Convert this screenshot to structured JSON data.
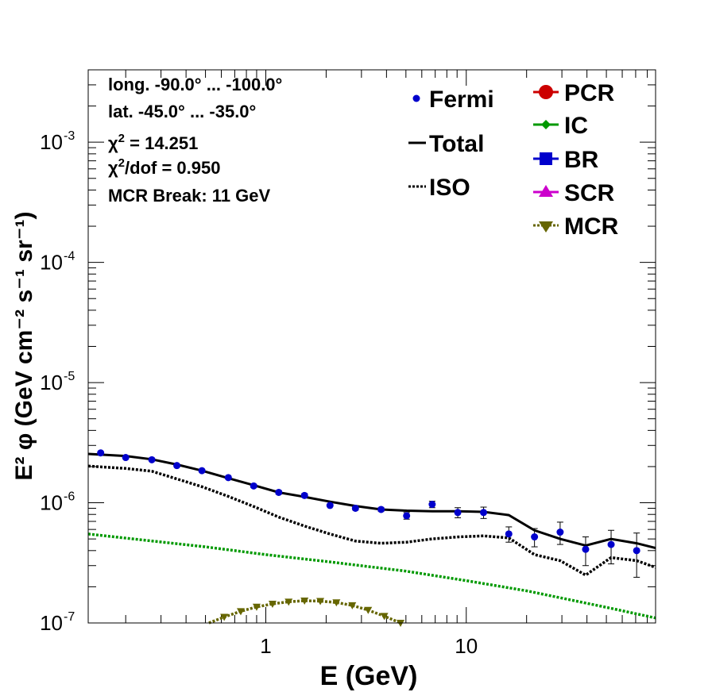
{
  "chart_data": {
    "type": "line",
    "title": "",
    "xlabel": "E (GeV)",
    "ylabel": "E² φ (GeV cm⁻² s⁻¹ sr⁻¹)",
    "xscale": "log",
    "yscale": "log",
    "xlim": [
      0.13,
      88
    ],
    "ylim": [
      1e-07,
      0.004
    ],
    "x_ticks": [
      {
        "v": 1,
        "label": "1"
      },
      {
        "v": 10,
        "label": "10"
      }
    ],
    "y_ticks": [
      {
        "v": 1e-07,
        "base": "10",
        "exp": "-7"
      },
      {
        "v": 1e-06,
        "base": "10",
        "exp": "-6"
      },
      {
        "v": 1e-05,
        "base": "10",
        "exp": "-5"
      },
      {
        "v": 0.0001,
        "base": "10",
        "exp": "-4"
      },
      {
        "v": 0.001,
        "base": "10",
        "exp": "-3"
      }
    ],
    "info": {
      "longitude": "long. -90.0° ... -100.0°",
      "latitude": "lat. -45.0° ... -35.0°",
      "chi2_sym": "χ",
      "chi2_sup": "2",
      "chi2_val": " = 14.251",
      "chi2dof_val": "/dof = 0.950",
      "break": "MCR Break: 11 GeV"
    },
    "legend": {
      "left": [
        {
          "name": "Fermi",
          "style": "marker",
          "color": "#0000cc"
        },
        {
          "name": "Total",
          "style": "solid",
          "color": "#000000"
        },
        {
          "name": "ISO",
          "style": "dotted",
          "color": "#000000"
        }
      ],
      "right": [
        {
          "name": "PCR",
          "style": "circle",
          "color": "#cc0000"
        },
        {
          "name": "IC",
          "style": "diamond",
          "color": "#009900"
        },
        {
          "name": "BR",
          "style": "square",
          "color": "#0000cc"
        },
        {
          "name": "SCR",
          "style": "triangle-up",
          "color": "#cc00cc"
        },
        {
          "name": "MCR",
          "style": "triangle-down",
          "color": "#666600"
        }
      ]
    },
    "series": [
      {
        "name": "Fermi",
        "kind": "points",
        "color": "#0000cc",
        "x": [
          0.15,
          0.2,
          0.27,
          0.36,
          0.48,
          0.65,
          0.87,
          1.16,
          1.56,
          2.09,
          2.8,
          3.76,
          5.04,
          6.76,
          9.07,
          12.2,
          16.3,
          21.9,
          29.4,
          39.4,
          52.8,
          70.8
        ],
        "y": [
          2.6e-06,
          2.38e-06,
          2.28e-06,
          2.04e-06,
          1.85e-06,
          1.62e-06,
          1.38e-06,
          1.22e-06,
          1.15e-06,
          9.5e-07,
          9e-07,
          8.8e-07,
          7.8e-07,
          9.7e-07,
          8.3e-07,
          8.3e-07,
          5.5e-07,
          5.2e-07,
          5.7e-07,
          4.1e-07,
          4.5e-07,
          4e-07
        ],
        "yerr": [
          6e-08,
          5e-08,
          5e-08,
          5e-08,
          4e-08,
          4e-08,
          4e-08,
          4e-08,
          4e-08,
          4e-09,
          3e-08,
          3e-08,
          5e-08,
          6e-08,
          8e-08,
          9e-08,
          8e-08,
          9e-08,
          1.2e-07,
          1.1e-07,
          1.4e-07,
          1.6e-07
        ]
      },
      {
        "name": "Total",
        "kind": "solid",
        "color": "#000000",
        "x": [
          0.13,
          0.2,
          0.27,
          0.36,
          0.48,
          0.65,
          0.87,
          1.16,
          1.56,
          2.09,
          2.8,
          3.76,
          5.04,
          6.76,
          9.07,
          12.2,
          16.3,
          21.9,
          29.4,
          39.4,
          52.8,
          70.8,
          88
        ],
        "y": [
          2.55e-06,
          2.45e-06,
          2.3e-06,
          2.08e-06,
          1.85e-06,
          1.6e-06,
          1.4e-06,
          1.22e-06,
          1.12e-06,
          1.02e-06,
          9.4e-07,
          8.8e-07,
          8.6e-07,
          8.5e-07,
          8.5e-07,
          8.4e-07,
          7.9e-07,
          5.9e-07,
          5e-07,
          4.4e-07,
          5e-07,
          4.6e-07,
          4.2e-07
        ]
      },
      {
        "name": "ISO",
        "kind": "dotted",
        "color": "#000000",
        "x": [
          0.13,
          0.2,
          0.27,
          0.36,
          0.48,
          0.65,
          0.87,
          1.16,
          1.56,
          2.09,
          2.8,
          3.76,
          5.04,
          6.76,
          9.07,
          12.2,
          16.3,
          21.9,
          29.4,
          39.4,
          52.8,
          70.8,
          88
        ],
        "y": [
          2.02e-06,
          1.93e-06,
          1.83e-06,
          1.58e-06,
          1.36e-06,
          1.13e-06,
          9.3e-07,
          7.6e-07,
          6.4e-07,
          5.5e-07,
          4.8e-07,
          4.6e-07,
          4.7e-07,
          5e-07,
          5.2e-07,
          5.3e-07,
          5.1e-07,
          3.7e-07,
          3.3e-07,
          2.5e-07,
          3.5e-07,
          3.3e-07,
          2.9e-07
        ]
      },
      {
        "name": "IC",
        "kind": "dotted",
        "color": "#009900",
        "x": [
          0.13,
          0.5,
          1.0,
          2.0,
          5.0,
          10.0,
          20.0,
          50.0,
          88
        ],
        "y": [
          5.5e-07,
          4.3e-07,
          3.7e-07,
          3.25e-07,
          2.7e-07,
          2.25e-07,
          1.85e-07,
          1.35e-07,
          1.1e-07
        ]
      },
      {
        "name": "MCR",
        "kind": "dotted-markers",
        "color": "#666600",
        "x": [
          0.52,
          0.62,
          0.75,
          0.9,
          1.08,
          1.3,
          1.56,
          1.87,
          2.25,
          2.7,
          3.24,
          3.9,
          4.7
        ],
        "y": [
          9.8e-08,
          1.12e-07,
          1.25e-07,
          1.36e-07,
          1.44e-07,
          1.5e-07,
          1.53e-07,
          1.52e-07,
          1.48e-07,
          1.4e-07,
          1.28e-07,
          1.14e-07,
          1e-07
        ]
      }
    ]
  }
}
